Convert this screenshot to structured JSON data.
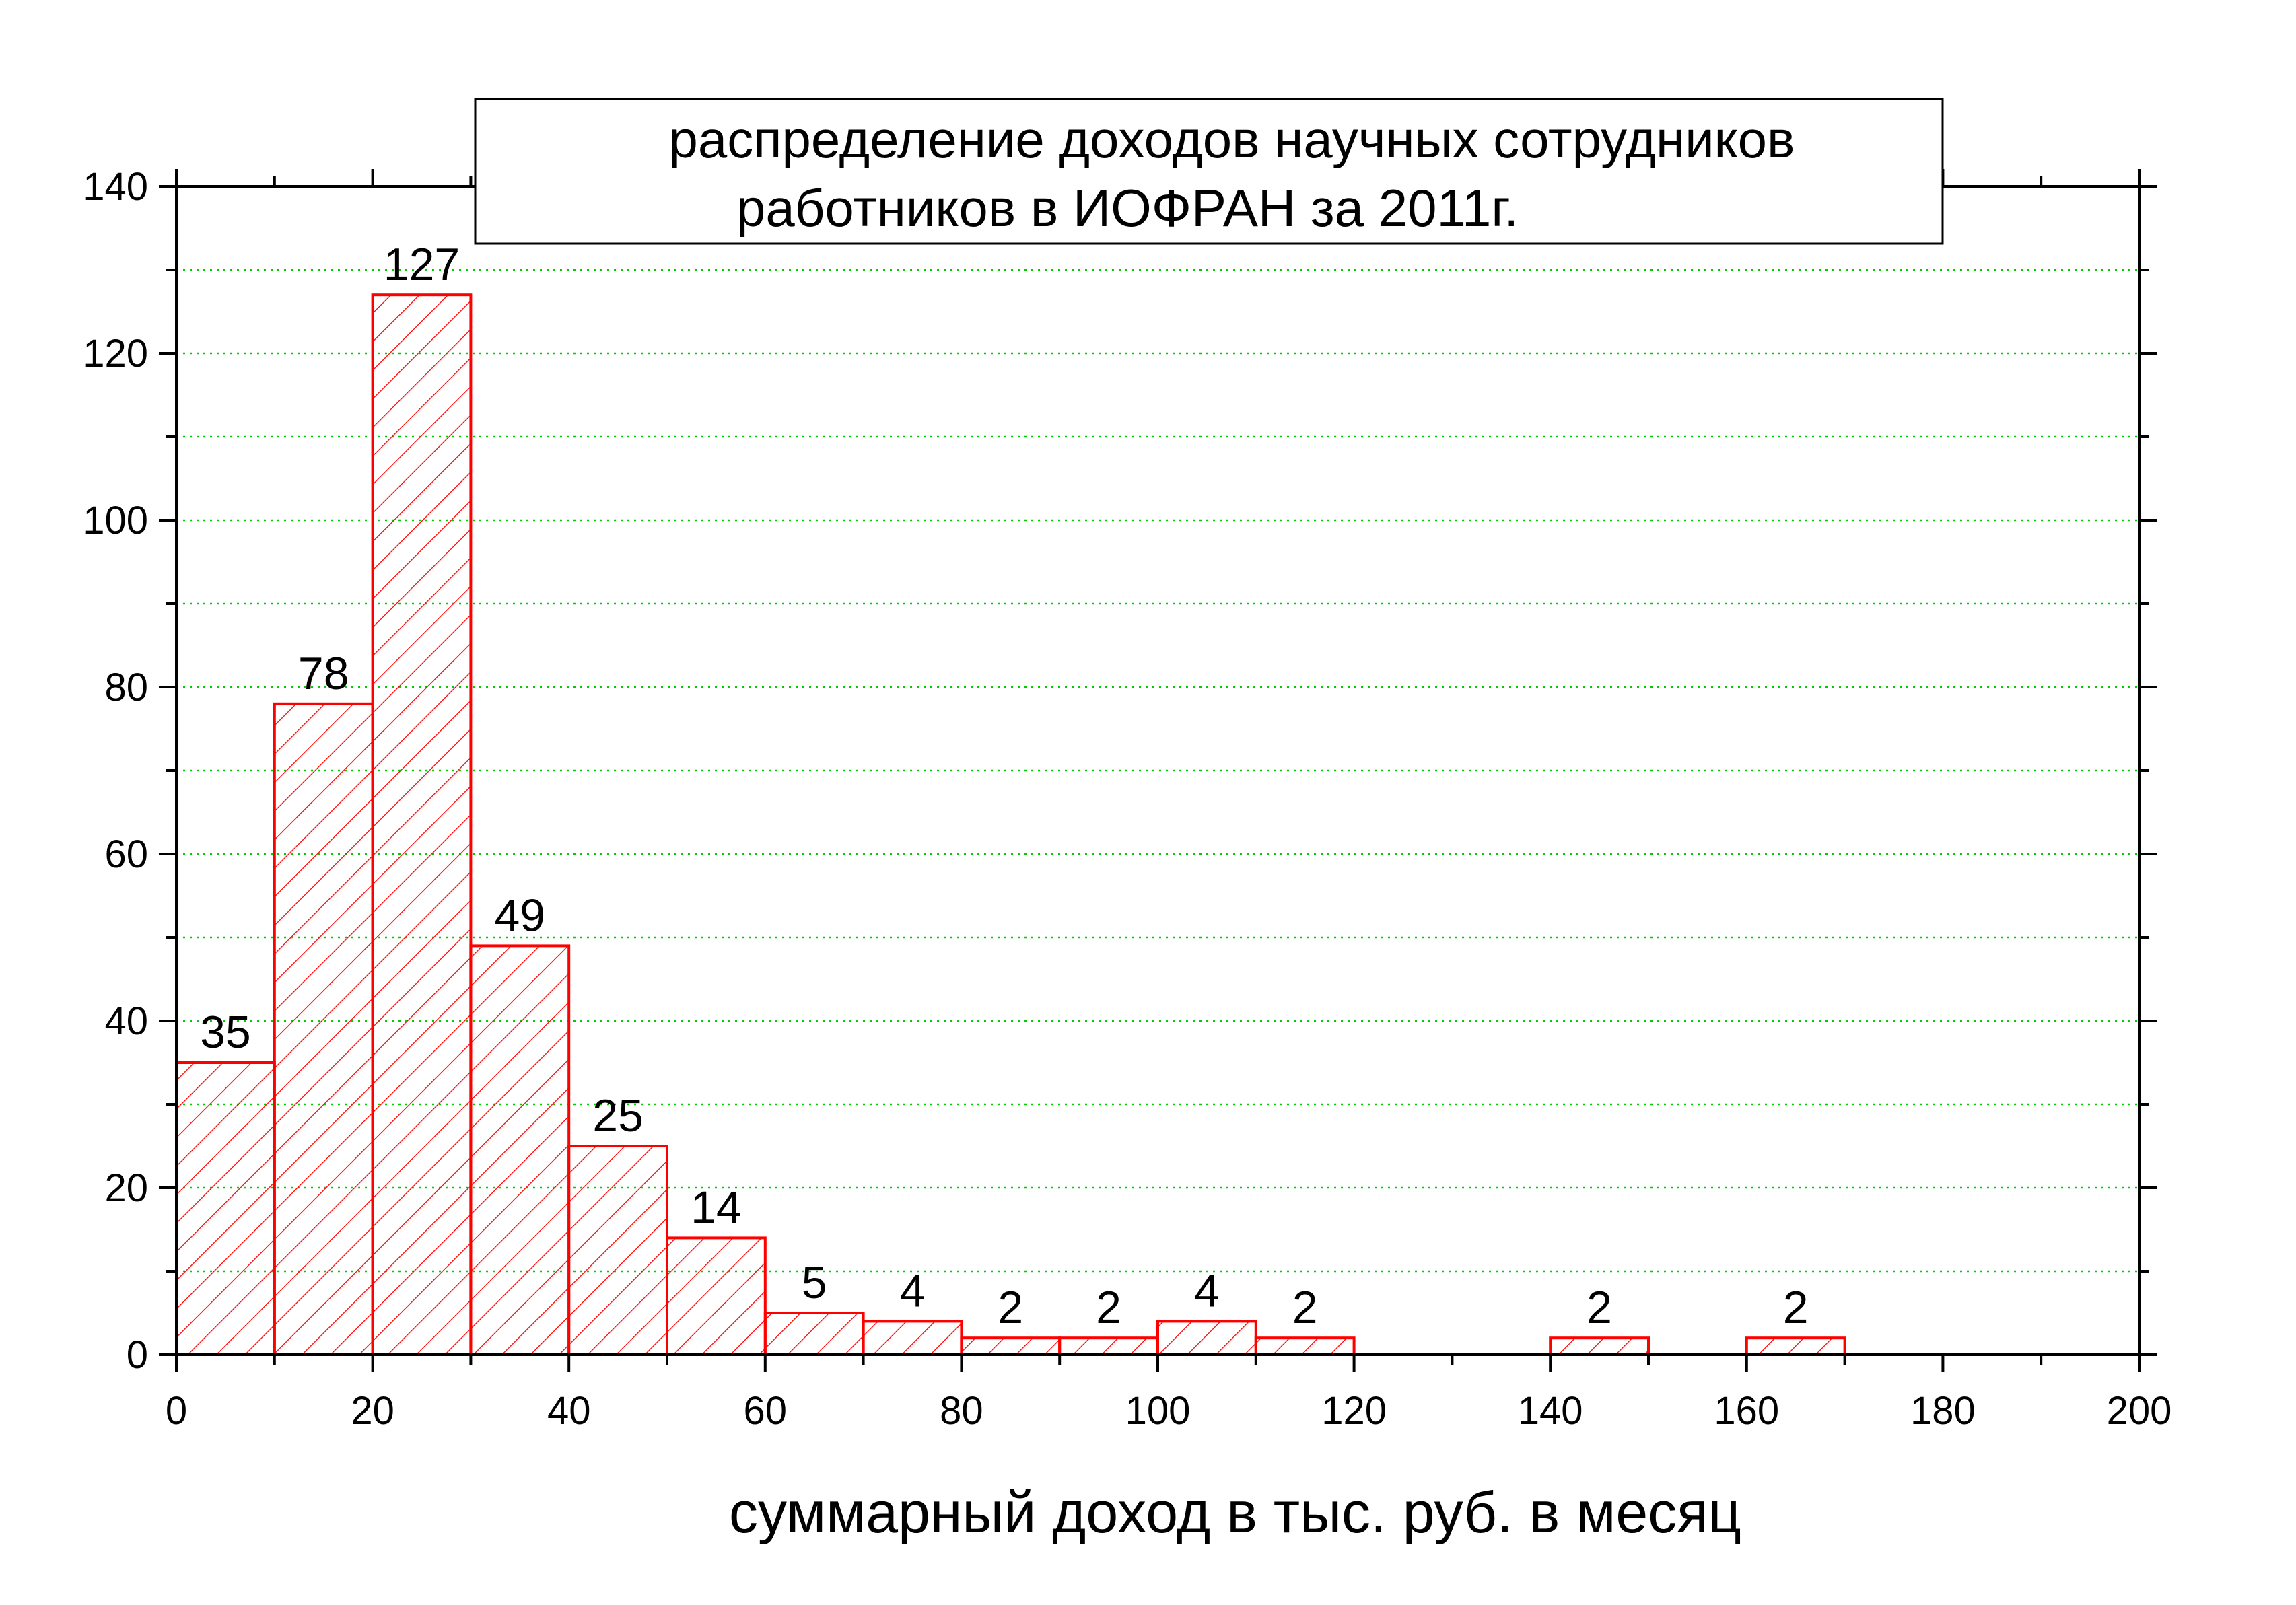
{
  "chart_data": {
    "type": "bar",
    "title_lines": [
      "распределение доходов научных сотрудников",
      "работников в ИОФРАН за 2011г."
    ],
    "xlabel": "суммарный доход в тыс. руб. в месяц",
    "ylabel": "",
    "xlim": [
      0,
      200
    ],
    "ylim": [
      0,
      140
    ],
    "x_ticks": [
      0,
      20,
      40,
      60,
      80,
      100,
      120,
      140,
      160,
      180,
      200
    ],
    "y_ticks": [
      0,
      20,
      40,
      60,
      80,
      100,
      120,
      140
    ],
    "grid": true,
    "bar_color": "#ff0000",
    "grid_color": "#00cc00",
    "bins": [
      {
        "x_start": 0,
        "x_end": 10,
        "value": 35,
        "label": "35"
      },
      {
        "x_start": 10,
        "x_end": 20,
        "value": 78,
        "label": "78"
      },
      {
        "x_start": 20,
        "x_end": 30,
        "value": 127,
        "label": "127"
      },
      {
        "x_start": 30,
        "x_end": 40,
        "value": 49,
        "label": "49"
      },
      {
        "x_start": 40,
        "x_end": 50,
        "value": 25,
        "label": "25"
      },
      {
        "x_start": 50,
        "x_end": 60,
        "value": 14,
        "label": "14"
      },
      {
        "x_start": 60,
        "x_end": 70,
        "value": 5,
        "label": "5"
      },
      {
        "x_start": 70,
        "x_end": 80,
        "value": 4,
        "label": "4"
      },
      {
        "x_start": 80,
        "x_end": 90,
        "value": 2,
        "label": "2"
      },
      {
        "x_start": 90,
        "x_end": 100,
        "value": 2,
        "label": "2"
      },
      {
        "x_start": 100,
        "x_end": 110,
        "value": 4,
        "label": "4"
      },
      {
        "x_start": 110,
        "x_end": 120,
        "value": 2,
        "label": "2"
      },
      {
        "x_start": 120,
        "x_end": 130,
        "value": 0,
        "label": ""
      },
      {
        "x_start": 130,
        "x_end": 140,
        "value": 0,
        "label": ""
      },
      {
        "x_start": 140,
        "x_end": 150,
        "value": 2,
        "label": "2"
      },
      {
        "x_start": 150,
        "x_end": 160,
        "value": 0,
        "label": ""
      },
      {
        "x_start": 160,
        "x_end": 170,
        "value": 2,
        "label": "2"
      }
    ]
  }
}
